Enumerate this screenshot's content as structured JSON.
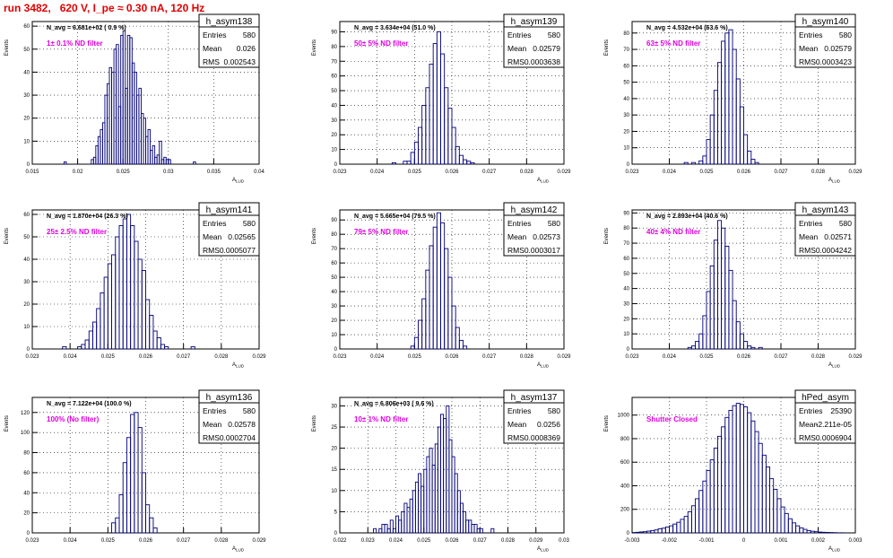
{
  "title": "run 3482,   620 V, I_pe ≈ 0.30 nA, 120 Hz",
  "chart_data": [
    {
      "type": "bar",
      "hist": "h_asym138",
      "navg": "N_avg = 6.681e+02 ( 0.9 %)",
      "filter": "1± 0.1% ND filter",
      "stats": [
        [
          "Entries",
          "580"
        ],
        [
          "Mean",
          "0.026"
        ],
        [
          "RMS",
          "0.002543"
        ]
      ],
      "xlim": [
        0.015,
        0.04
      ],
      "ylim": [
        0,
        62
      ],
      "yticks": [
        0,
        10,
        20,
        30,
        40,
        50,
        60
      ],
      "xticks": [
        "0.015",
        "0.02",
        "0.025",
        "0.03",
        "0.035",
        "0.04"
      ],
      "bin_start": 0.0185,
      "bin_width": 0.00025,
      "values": [
        1,
        0,
        0,
        0,
        0,
        0,
        0,
        0,
        0,
        0,
        0,
        0,
        2,
        3,
        8,
        12,
        15,
        18,
        30,
        35,
        42,
        40,
        50,
        52,
        25,
        56,
        58,
        33,
        56,
        55,
        44,
        40,
        30,
        33,
        22,
        20,
        12,
        15,
        6,
        8,
        3,
        4,
        10,
        2,
        3,
        2,
        2,
        0,
        0,
        0,
        0,
        0,
        0,
        0,
        0,
        0,
        0,
        1
      ]
    },
    {
      "type": "bar",
      "hist": "h_asym139",
      "navg": "N_avg = 3.634e+04 (51.0 %)",
      "filter": "50± 5% ND filter",
      "stats": [
        [
          "Entries",
          "580"
        ],
        [
          "Mean",
          "0.02579"
        ],
        [
          "RMS",
          "0.0003638"
        ]
      ],
      "xlim": [
        0.023,
        0.029
      ],
      "ylim": [
        0,
        97
      ],
      "yticks": [
        0,
        10,
        20,
        30,
        40,
        50,
        60,
        70,
        80,
        90
      ],
      "xticks": [
        "0.023",
        "0.024",
        "0.025",
        "0.026",
        "0.027",
        "0.028",
        "0.029"
      ],
      "bin_start": 0.0244,
      "bin_width": 0.0001,
      "values": [
        1,
        0,
        0,
        2,
        2,
        8,
        15,
        25,
        40,
        52,
        68,
        82,
        90,
        75,
        52,
        38,
        25,
        12,
        6,
        3,
        2,
        1
      ]
    },
    {
      "type": "bar",
      "hist": "h_asym140",
      "navg": "N_avg = 4.532e+04 (63.6 %)",
      "filter": "63± 5% ND filter",
      "stats": [
        [
          "Entries",
          "580"
        ],
        [
          "Mean",
          "0.02579"
        ],
        [
          "RMS",
          "0.0003423"
        ]
      ],
      "xlim": [
        0.023,
        0.029
      ],
      "ylim": [
        0,
        87
      ],
      "yticks": [
        0,
        10,
        20,
        30,
        40,
        50,
        60,
        70,
        80
      ],
      "xticks": [
        "0.023",
        "0.024",
        "0.025",
        "0.026",
        "0.027",
        "0.028",
        "0.029"
      ],
      "bin_start": 0.0244,
      "bin_width": 0.0001,
      "values": [
        1,
        0,
        1,
        0,
        2,
        5,
        15,
        30,
        45,
        62,
        75,
        80,
        82,
        70,
        52,
        35,
        18,
        8,
        3,
        1
      ]
    },
    {
      "type": "bar",
      "hist": "h_asym141",
      "navg": "N_avg = 1.870e+04 (26.3 %)",
      "filter": "25± 2.5% ND filter",
      "stats": [
        [
          "Entries",
          "580"
        ],
        [
          "Mean",
          "0.02565"
        ],
        [
          "RMS",
          "0.0005077"
        ]
      ],
      "xlim": [
        0.023,
        0.029
      ],
      "ylim": [
        0,
        62
      ],
      "yticks": [
        0,
        10,
        20,
        30,
        40,
        50,
        60
      ],
      "xticks": [
        "0.023",
        "0.024",
        "0.025",
        "0.026",
        "0.027",
        "0.028",
        "0.029"
      ],
      "bin_start": 0.0238,
      "bin_width": 0.0001,
      "values": [
        1,
        0,
        0,
        0,
        1,
        2,
        4,
        8,
        12,
        18,
        25,
        32,
        38,
        42,
        50,
        55,
        58,
        60,
        55,
        48,
        40,
        35,
        22,
        15,
        8,
        5,
        2,
        1,
        0,
        0,
        0,
        0,
        0,
        0,
        1
      ]
    },
    {
      "type": "bar",
      "hist": "h_asym142",
      "navg": "N_avg = 5.665e+04 (79.5 %)",
      "filter": "79± 5% ND filter",
      "stats": [
        [
          "Entries",
          "580"
        ],
        [
          "Mean",
          "0.02573"
        ],
        [
          "RMS",
          "0.0003017"
        ]
      ],
      "xlim": [
        0.023,
        0.029
      ],
      "ylim": [
        0,
        97
      ],
      "yticks": [
        0,
        10,
        20,
        30,
        40,
        50,
        60,
        70,
        80,
        90
      ],
      "xticks": [
        "0.023",
        "0.024",
        "0.025",
        "0.026",
        "0.027",
        "0.028",
        "0.029"
      ],
      "bin_start": 0.0249,
      "bin_width": 0.0001,
      "values": [
        2,
        8,
        20,
        35,
        55,
        72,
        85,
        95,
        88,
        70,
        50,
        30,
        15,
        6,
        2
      ]
    },
    {
      "type": "bar",
      "hist": "h_asym143",
      "navg": "N_avg = 2.893e+04 (40.6 %)",
      "filter": "40± 4% ND filter",
      "stats": [
        [
          "Entries",
          "580"
        ],
        [
          "Mean",
          "0.02571"
        ],
        [
          "RMS",
          "0.0004242"
        ]
      ],
      "xlim": [
        0.023,
        0.029
      ],
      "ylim": [
        0,
        92
      ],
      "yticks": [
        0,
        10,
        20,
        30,
        40,
        50,
        60,
        70,
        80,
        90
      ],
      "xticks": [
        "0.023",
        "0.024",
        "0.025",
        "0.026",
        "0.027",
        "0.028",
        "0.029"
      ],
      "bin_start": 0.0245,
      "bin_width": 0.0001,
      "values": [
        1,
        2,
        5,
        10,
        22,
        38,
        55,
        72,
        85,
        80,
        68,
        52,
        32,
        18,
        10,
        5,
        2,
        1,
        0,
        1
      ]
    },
    {
      "type": "bar",
      "hist": "h_asym136",
      "navg": "N_avg = 7.122e+04 (100.0 %)",
      "filter": "100% (No filter)",
      "stats": [
        [
          "Entries",
          "580"
        ],
        [
          "Mean",
          "0.02578"
        ],
        [
          "RMS",
          "0.0002704"
        ]
      ],
      "xlim": [
        0.023,
        0.029
      ],
      "ylim": [
        0,
        135
      ],
      "yticks": [
        0,
        20,
        40,
        60,
        80,
        100,
        120
      ],
      "xticks": [
        "0.023",
        "0.024",
        "0.025",
        "0.026",
        "0.027",
        "0.028",
        "0.029"
      ],
      "bin_start": 0.0251,
      "bin_width": 0.0001,
      "values": [
        10,
        15,
        38,
        70,
        95,
        118,
        120,
        105,
        60,
        28,
        15,
        5
      ]
    },
    {
      "type": "bar",
      "hist": "h_asym137",
      "navg": "N_avg = 6.806e+03 ( 9.6 %)",
      "filter": "10± 1% ND filter",
      "stats": [
        [
          "Entries",
          "580"
        ],
        [
          "Mean",
          "0.0256"
        ],
        [
          "RMS",
          "0.0008369"
        ]
      ],
      "xlim": [
        0.022,
        0.03
      ],
      "ylim": [
        0,
        32
      ],
      "yticks": [
        0,
        5,
        10,
        15,
        20,
        25,
        30
      ],
      "xticks": [
        "0.022",
        "0.023",
        "0.024",
        "0.025",
        "0.026",
        "0.027",
        "0.028",
        "0.029",
        "0.03"
      ],
      "bin_start": 0.0232,
      "bin_width": 0.0001,
      "values": [
        1,
        0,
        1,
        2,
        2,
        1,
        3,
        1,
        4,
        3,
        5,
        7,
        6,
        8,
        10,
        12,
        14,
        11,
        15,
        18,
        20,
        16,
        21,
        25,
        28,
        27,
        30,
        22,
        18,
        14,
        10,
        7,
        5,
        3,
        3,
        2,
        2,
        1,
        1,
        0,
        0,
        0,
        1
      ]
    },
    {
      "type": "bar",
      "hist": "hPed_asym",
      "navg": "",
      "filter": "Shutter Closed",
      "stats": [
        [
          "Entries",
          "25390"
        ],
        [
          "Mean",
          "-2.211e-05"
        ],
        [
          "RMS",
          "0.0006904"
        ]
      ],
      "xlim": [
        -0.003,
        0.003
      ],
      "ylim": [
        0,
        1150
      ],
      "yticks": [
        0,
        200,
        400,
        600,
        800,
        1000
      ],
      "xticks": [
        "-0.003",
        "-0.002",
        "-0.001",
        "0",
        "0.001",
        "0.002",
        "0.003"
      ],
      "bin_start": -0.003,
      "bin_width": 0.0001,
      "values": [
        3,
        5,
        8,
        10,
        15,
        20,
        25,
        35,
        40,
        50,
        60,
        75,
        90,
        115,
        140,
        180,
        230,
        290,
        360,
        440,
        530,
        620,
        720,
        820,
        900,
        980,
        1040,
        1080,
        1100,
        1090,
        1070,
        1020,
        950,
        860,
        760,
        660,
        560,
        460,
        370,
        290,
        220,
        165,
        120,
        85,
        60,
        42,
        30,
        20,
        14,
        10,
        7,
        5,
        4,
        3,
        2,
        1,
        1,
        0,
        0,
        0
      ]
    }
  ]
}
